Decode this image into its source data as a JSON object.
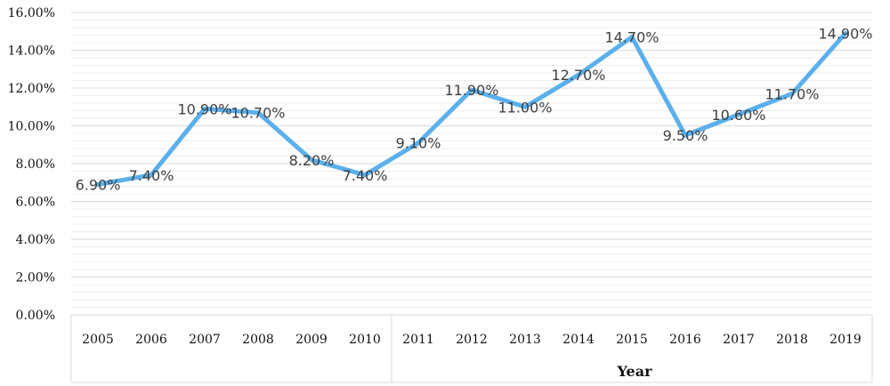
{
  "chart_data": {
    "type": "line",
    "title": "",
    "xlabel": "Year",
    "ylabel": "",
    "categories": [
      "2005",
      "2006",
      "2007",
      "2008",
      "2009",
      "2010",
      "2011",
      "2012",
      "2013",
      "2014",
      "2015",
      "2016",
      "2017",
      "2018",
      "2019"
    ],
    "series": [
      {
        "values": [
          6.9,
          7.4,
          10.9,
          10.7,
          8.2,
          7.4,
          9.1,
          11.9,
          11.0,
          12.7,
          14.7,
          9.5,
          10.6,
          11.7,
          14.9
        ],
        "data_labels": [
          "6.90%",
          "7.40%",
          "10.90%",
          "10.70%",
          "8.20%",
          "7.40%",
          "9.10%",
          "11.90%",
          "11.00%",
          "12.70%",
          "14.70%",
          "9.50%",
          "10.60%",
          "11.70%",
          "14.90%"
        ]
      }
    ],
    "ylim": [
      0,
      16
    ],
    "yticks": [
      0,
      2,
      4,
      6,
      8,
      10,
      12,
      14,
      16
    ],
    "ytick_labels": [
      "0.00%",
      "2.00%",
      "4.00%",
      "6.00%",
      "8.00%",
      "10.00%",
      "12.00%",
      "14.00%",
      "16.00%"
    ],
    "grid": true,
    "legend": "none",
    "colors": {
      "line": "#5BB0EC",
      "grid": "#d9d9d9",
      "minor_grid": "#eeeeee",
      "axis_box": "#d9d9d9",
      "data_label": "#404040"
    }
  }
}
